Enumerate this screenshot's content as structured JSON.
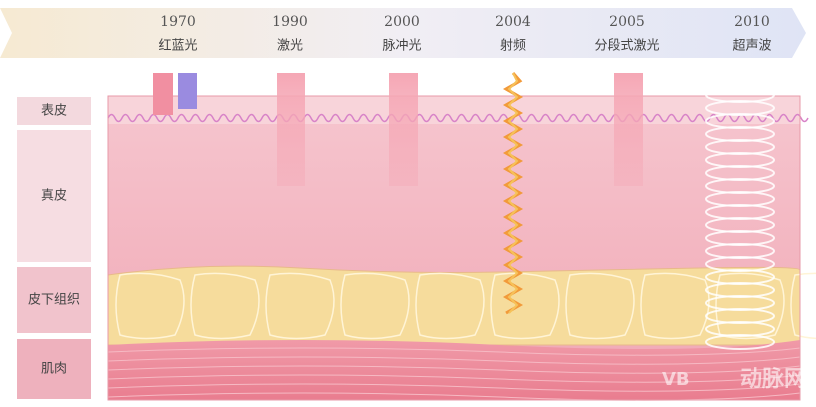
{
  "timeline": [
    {
      "year": "1970",
      "label": "红蓝光"
    },
    {
      "year": "1990",
      "label": "激光"
    },
    {
      "year": "2000",
      "label": "脉冲光"
    },
    {
      "year": "2004",
      "label": "射频"
    },
    {
      "year": "2005",
      "label": "分段式激光"
    },
    {
      "year": "2010",
      "label": "超声波"
    }
  ],
  "layers": [
    "表皮",
    "真皮",
    "皮下组织",
    "肌肉"
  ],
  "watermark": {
    "logo": "VB",
    "text": "动脉网"
  }
}
